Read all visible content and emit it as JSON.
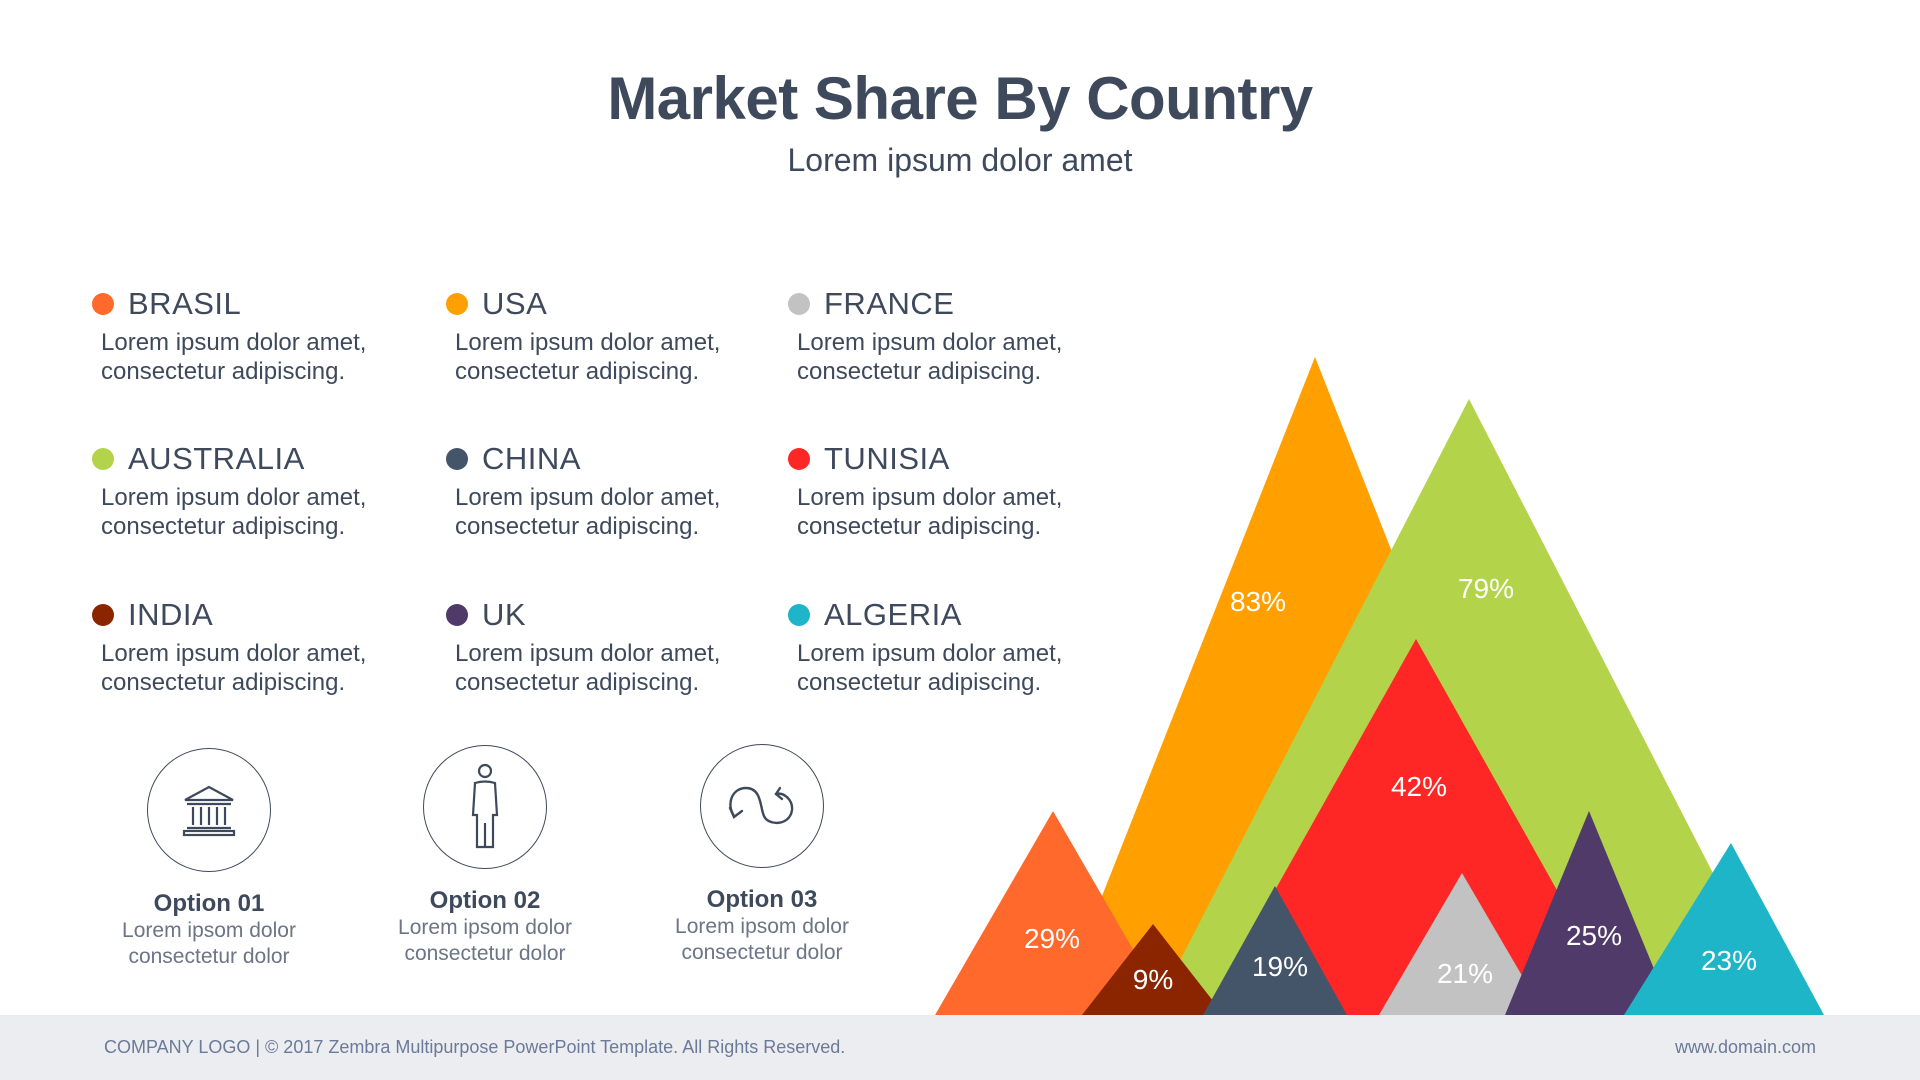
{
  "header": {
    "title": "Market Share By Country",
    "subtitle": "Lorem ipsum dolor amet"
  },
  "legend": [
    {
      "name": "BRASIL",
      "color": "#ff6a2c",
      "desc": "Lorem ipsum dolor amet, consectetur adipiscing."
    },
    {
      "name": "USA",
      "color": "#ffa000",
      "desc": "Lorem ipsum dolor amet, consectetur adipiscing."
    },
    {
      "name": "FRANCE",
      "color": "#c2c2c2",
      "desc": "Lorem ipsum dolor amet, consectetur adipiscing."
    },
    {
      "name": "AUSTRALIA",
      "color": "#b3d44a",
      "desc": "Lorem ipsum dolor amet, consectetur adipiscing."
    },
    {
      "name": "CHINA",
      "color": "#445469",
      "desc": "Lorem ipsum dolor amet, consectetur adipiscing."
    },
    {
      "name": "TUNISIA",
      "color": "#ff2626",
      "desc": "Lorem ipsum dolor amet, consectetur adipiscing."
    },
    {
      "name": "INDIA",
      "color": "#8b2500",
      "desc": "Lorem ipsum dolor amet, consectetur adipiscing."
    },
    {
      "name": "UK",
      "color": "#4f3a69",
      "desc": "Lorem ipsum dolor amet, consectetur adipiscing."
    },
    {
      "name": "ALGERIA",
      "color": "#1eb5c8",
      "desc": "Lorem ipsum dolor amet, consectetur adipiscing."
    }
  ],
  "options": [
    {
      "title": "Option 01",
      "desc1": "Lorem ipsom dolor",
      "desc2": "consectetur dolor",
      "icon": "bank-icon"
    },
    {
      "title": "Option 02",
      "desc1": "Lorem ipsom dolor",
      "desc2": "consectetur dolor",
      "icon": "person-icon"
    },
    {
      "title": "Option 03",
      "desc1": "Lorem ipsom dolor",
      "desc2": "consectetur dolor",
      "icon": "cycle-arrows-icon"
    }
  ],
  "chart_data": {
    "type": "area",
    "title": "Market Share By Country",
    "subtitle": "Lorem ipsum dolor amet",
    "series": [
      {
        "name": "USA",
        "value": 83,
        "label": "83%",
        "color": "#ffa000"
      },
      {
        "name": "AUSTRALIA",
        "value": 79,
        "label": "79%",
        "color": "#b3d44a"
      },
      {
        "name": "TUNISIA",
        "value": 42,
        "label": "42%",
        "color": "#ff2626"
      },
      {
        "name": "BRASIL",
        "value": 29,
        "label": "29%",
        "color": "#ff6a2c"
      },
      {
        "name": "UK",
        "value": 25,
        "label": "25%",
        "color": "#4f3a69"
      },
      {
        "name": "ALGERIA",
        "value": 23,
        "label": "23%",
        "color": "#1eb5c8"
      },
      {
        "name": "FRANCE",
        "value": 21,
        "label": "21%",
        "color": "#c2c2c2"
      },
      {
        "name": "CHINA",
        "value": 19,
        "label": "19%",
        "color": "#445469"
      },
      {
        "name": "INDIA",
        "value": 9,
        "label": "9%",
        "color": "#8b2500"
      }
    ]
  },
  "footer": {
    "left": "COMPANY LOGO | © 2017 Zembra Multipurpose PowerPoint Template. All Rights Reserved.",
    "right": "www.domain.com"
  }
}
